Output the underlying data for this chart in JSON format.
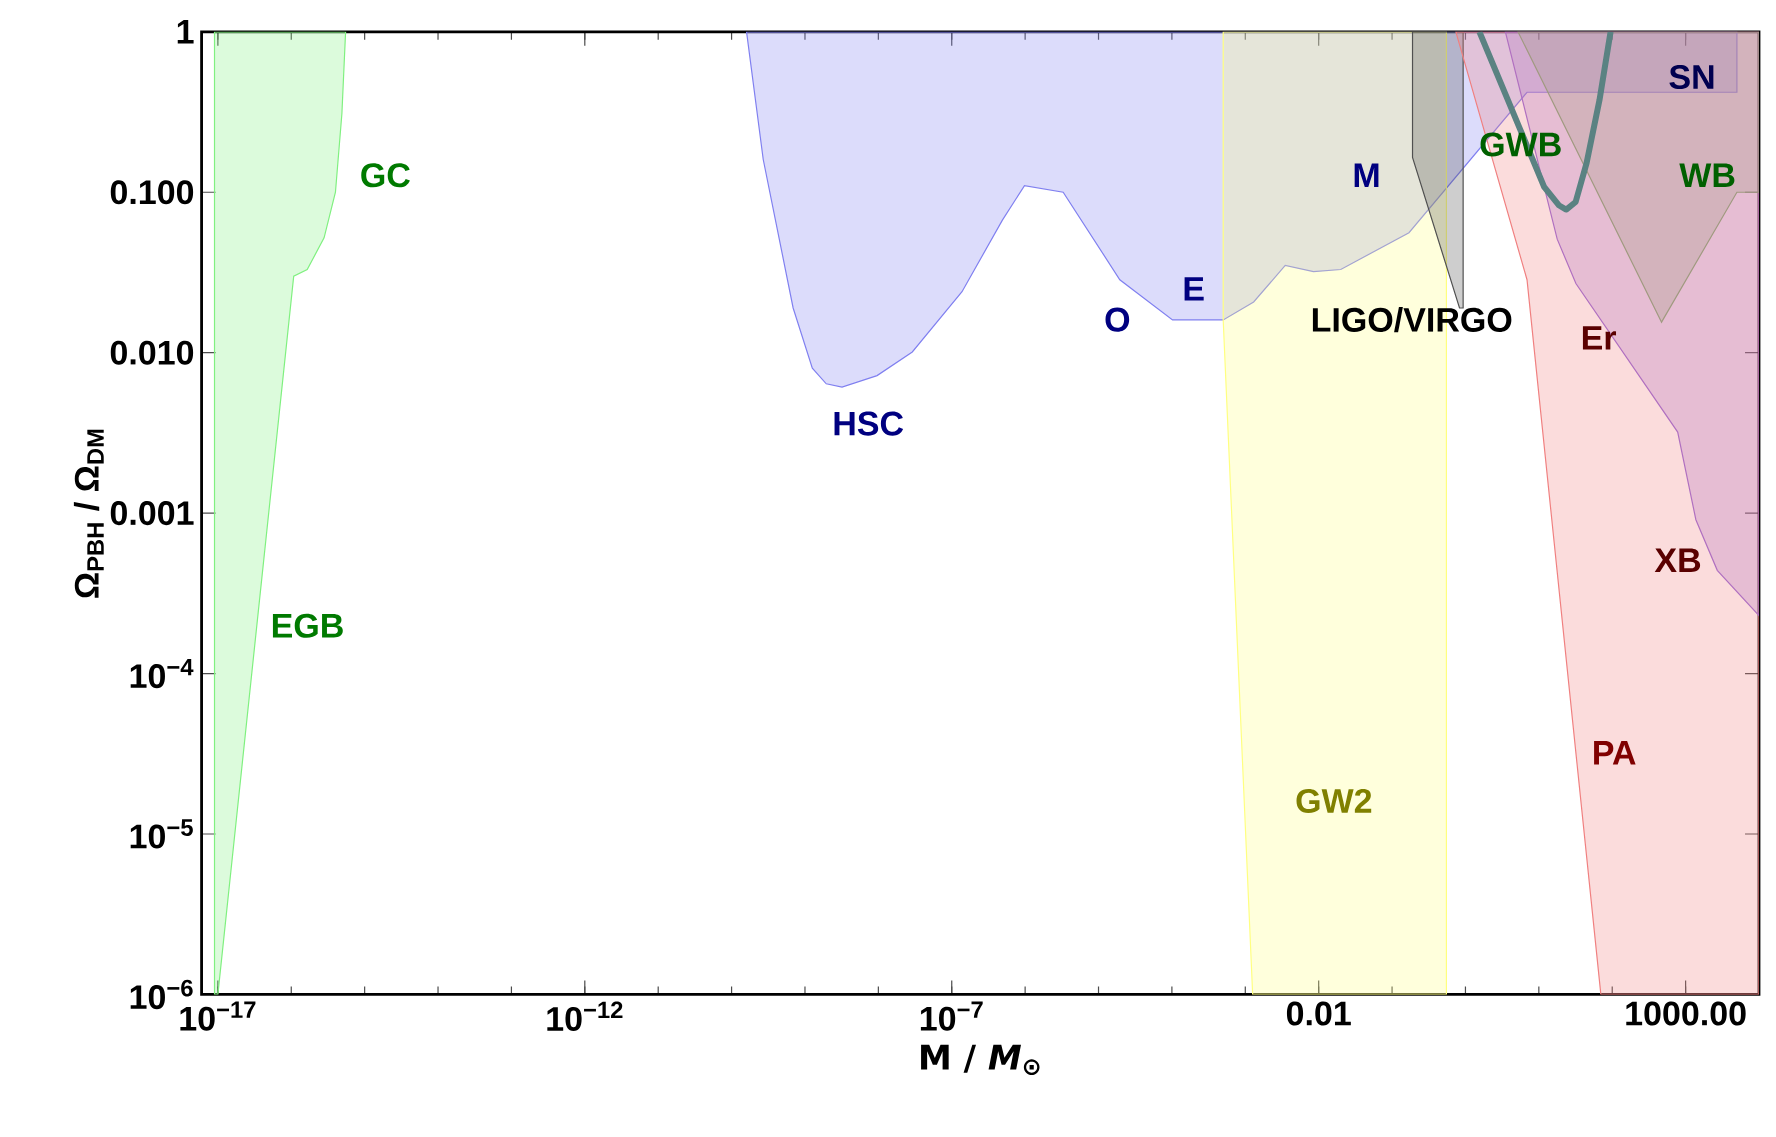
{
  "chart_data": {
    "type": "area",
    "xlabel": "M / *M*$_{⊙}$",
    "ylabel": "Ω$_{PBH}$ / Ω$_{DM}$",
    "log": "xy",
    "xlim": [
      6e-18,
      10000
    ],
    "ylim": [
      1e-06,
      1
    ],
    "xticks": [
      {
        "value": 1e-17,
        "label": "10$^{−17}$"
      },
      {
        "value": 1e-12,
        "label": "10$^{−12}$"
      },
      {
        "value": 1e-07,
        "label": "10$^{−7}$"
      },
      {
        "value": 0.01,
        "label": "0.01"
      },
      {
        "value": 1000,
        "label": "1000.00"
      }
    ],
    "yticks": [
      {
        "value": 1e-06,
        "label": "10$^{−6}$"
      },
      {
        "value": 1e-05,
        "label": "10$^{−5}$"
      },
      {
        "value": 0.0001,
        "label": "10$^{−4}$"
      },
      {
        "value": 0.001,
        "label": "0.001"
      },
      {
        "value": 0.01,
        "label": "0.010"
      },
      {
        "value": 0.1,
        "label": "0.100"
      },
      1
    ],
    "series": [
      {
        "color": "#80f080",
        "x": [
          9e-18,
          9e-18,
          1e-17,
          1.08e-16,
          1.65e-16,
          2.8e-16,
          4e-16,
          4.9e-16,
          5.5e-16
        ],
        "values": [
          1,
          1e-06,
          1e-06,
          0.03,
          0.033,
          0.052,
          0.1,
          0.31,
          1
        ]
      },
      {
        "color": "#8080f0",
        "x": [
          1.6e-10,
          2.7e-10,
          6.9e-10,
          1.26e-09,
          1.95e-09,
          3.2e-09,
          9.6e-09,
          2.9e-08,
          1.38e-07,
          4.9e-07,
          9.8e-07,
          3.3e-06,
          1.95e-05,
          0.000102,
          0.0005,
          0.0013,
          0.0035,
          0.0085,
          0.02,
          0.17,
          6.9,
          5000,
          5000
        ],
        "values": [
          1,
          0.16,
          0.019,
          0.008,
          0.0064,
          0.0061,
          0.0072,
          0.0101,
          0.024,
          0.067,
          0.11,
          0.1,
          0.0285,
          0.016,
          0.016,
          0.0207,
          0.035,
          0.032,
          0.033,
          0.056,
          0.42,
          0.42,
          1
        ]
      },
      {
        "color": "#ffff80",
        "x": [
          0.0005,
          0.0005,
          0.00126,
          0.55,
          0.55
        ],
        "values": [
          1,
          0.016,
          1e-06,
          1e-06,
          1
        ]
      },
      {
        "color": "#505050",
        "x": [
          0.19,
          0.19,
          0.83,
          0.93,
          0.93
        ],
        "values": [
          1,
          0.165,
          0.019,
          0.019,
          1
        ]
      },
      {
        "color": "#f08080",
        "x": [
          0.74,
          6.9,
          70,
          10000,
          10000
        ],
        "values": [
          1,
          0.0285,
          1e-06,
          1e-06,
          1
        ]
      },
      {
        "color": "#b070c0",
        "x": [
          3.5,
          17.8,
          32,
          780,
          1380,
          2700,
          10000,
          10000
        ],
        "values": [
          1,
          0.051,
          0.027,
          0.0032,
          0.00091,
          0.00044,
          0.00023,
          1
        ]
      },
      {
        "color": "#a09a80",
        "x": [
          5.2,
          470,
          5000,
          10000,
          10000
        ],
        "values": [
          1,
          0.0155,
          0.1,
          0.1,
          1
        ]
      },
      {
        "type": "line",
        "color": "#5a8282",
        "x": [
          1.55,
          5.6,
          11.8,
          18.7,
          23.6,
          31.7,
          44.7,
          67,
          95
        ],
        "values": [
          1,
          0.245,
          0.108,
          0.083,
          0.078,
          0.087,
          0.152,
          0.375,
          1
        ]
      }
    ],
    "annotations": [
      "GC",
      "EGB",
      "HSC",
      "O",
      "E",
      "M",
      "LIGO/VIRGO",
      "GW2",
      "GWB",
      "WB",
      "SN",
      "Er",
      "PA",
      "XB"
    ]
  }
}
